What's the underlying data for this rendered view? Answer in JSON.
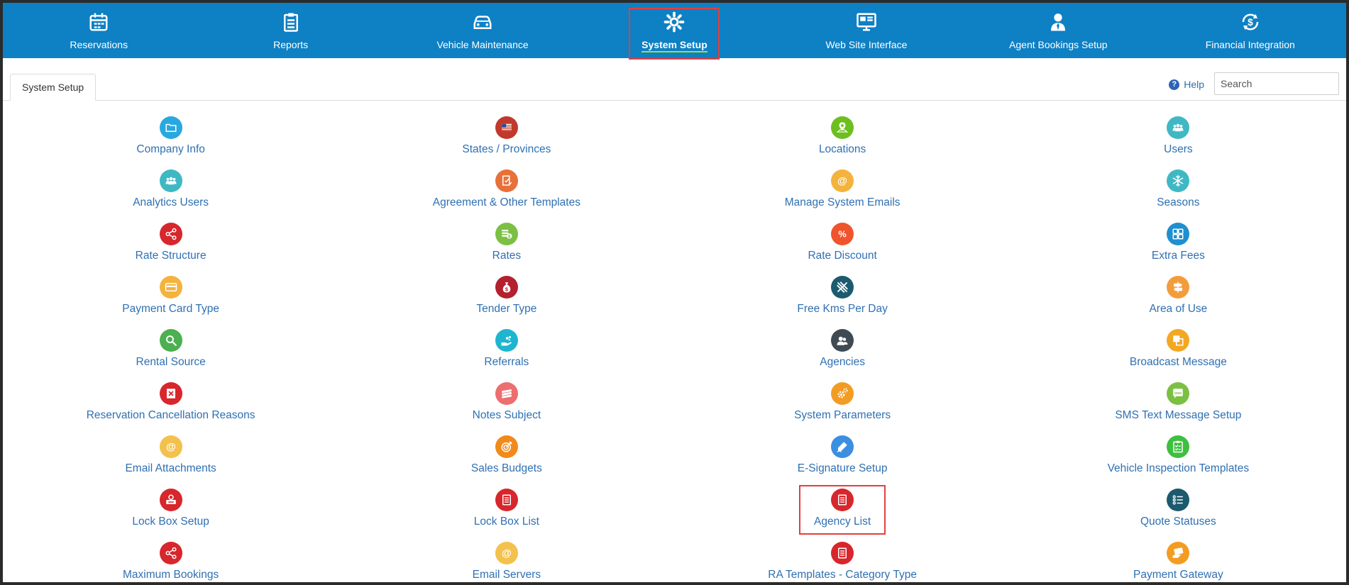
{
  "nav": [
    {
      "label": "Reservations",
      "icon": "calendar-icon",
      "active": false
    },
    {
      "label": "Reports",
      "icon": "clipboard-icon",
      "active": false
    },
    {
      "label": "Vehicle Maintenance",
      "icon": "car-icon",
      "active": false
    },
    {
      "label": "System Setup",
      "icon": "gear-icon",
      "active": true
    },
    {
      "label": "Web Site Interface",
      "icon": "monitor-icon",
      "active": false
    },
    {
      "label": "Agent Bookings Setup",
      "icon": "agent-icon",
      "active": false
    },
    {
      "label": "Financial Integration",
      "icon": "dollar-sync-icon",
      "active": false
    }
  ],
  "tab": {
    "label": "System Setup"
  },
  "help": {
    "label": "Help"
  },
  "search": {
    "placeholder": "Search",
    "value": ""
  },
  "items": [
    {
      "label": "Company Info",
      "icon": "folder-icon",
      "color": "#29a8e0"
    },
    {
      "label": "States / Provinces",
      "icon": "flag-icon",
      "color": "#c0392b"
    },
    {
      "label": "Locations",
      "icon": "map-pin-icon",
      "color": "#6cbf1e"
    },
    {
      "label": "Users",
      "icon": "users-icon",
      "color": "#3fb8c4"
    },
    {
      "label": "Analytics Users",
      "icon": "users-icon",
      "color": "#3fb8c4"
    },
    {
      "label": "Agreement & Other Templates",
      "icon": "document-edit-icon",
      "color": "#e8703a"
    },
    {
      "label": "Manage System Emails",
      "icon": "at-icon",
      "color": "#f3b33d"
    },
    {
      "label": "Seasons",
      "icon": "snowflake-icon",
      "color": "#3fb8c4"
    },
    {
      "label": "Rate Structure",
      "icon": "share-icon",
      "color": "#d7262c"
    },
    {
      "label": "Rates",
      "icon": "money-icon",
      "color": "#7bc043"
    },
    {
      "label": "Rate Discount",
      "icon": "percent-icon",
      "color": "#f0542d"
    },
    {
      "label": "Extra Fees",
      "icon": "grid-icon",
      "color": "#1f8fd0"
    },
    {
      "label": "Payment Card Type",
      "icon": "credit-card-icon",
      "color": "#f3b33d"
    },
    {
      "label": "Tender Type",
      "icon": "money-bag-icon",
      "color": "#b3202e"
    },
    {
      "label": "Free Kms Per Day",
      "icon": "road-icon",
      "color": "#1c5a6e"
    },
    {
      "label": "Area of Use",
      "icon": "signpost-icon",
      "color": "#f39c3d"
    },
    {
      "label": "Rental Source",
      "icon": "magnifier-icon",
      "color": "#4caf50"
    },
    {
      "label": "Referrals",
      "icon": "hand-icon",
      "color": "#1fb5d0"
    },
    {
      "label": "Agencies",
      "icon": "agencies-icon",
      "color": "#3f4a52"
    },
    {
      "label": "Broadcast Message",
      "icon": "copy-icon",
      "color": "#f3a823"
    },
    {
      "label": "Reservation Cancellation Reasons",
      "icon": "cancel-icon",
      "color": "#d7262c"
    },
    {
      "label": "Notes Subject",
      "icon": "notes-icon",
      "color": "#ec6e6e"
    },
    {
      "label": "System Parameters",
      "icon": "gears-icon",
      "color": "#f39c23"
    },
    {
      "label": "SMS Text Message Setup",
      "icon": "sms-icon",
      "color": "#7bc043"
    },
    {
      "label": "Email Attachments",
      "icon": "at-icon",
      "color": "#f3c14d"
    },
    {
      "label": "Sales Budgets",
      "icon": "target-icon",
      "color": "#f08a1c"
    },
    {
      "label": "E-Signature Setup",
      "icon": "pen-icon",
      "color": "#3b8fe0"
    },
    {
      "label": "Vehicle Inspection Templates",
      "icon": "checklist-icon",
      "color": "#3fbf3f"
    },
    {
      "label": "Lock Box Setup",
      "icon": "lock-box-icon",
      "color": "#d7262c"
    },
    {
      "label": "Lock Box List",
      "icon": "list-doc-icon",
      "color": "#d7262c"
    },
    {
      "label": "Agency List",
      "icon": "list-doc-icon",
      "color": "#d7262c",
      "highlight": true
    },
    {
      "label": "Quote Statuses",
      "icon": "status-list-icon",
      "color": "#1c5a6e"
    },
    {
      "label": "Maximum Bookings",
      "icon": "share-icon",
      "color": "#d7262c"
    },
    {
      "label": "Email Servers",
      "icon": "at-icon",
      "color": "#f3c14d"
    },
    {
      "label": "RA Templates - Category Type",
      "icon": "list-doc-icon",
      "color": "#d7262c"
    },
    {
      "label": "Payment Gateway",
      "icon": "payment-icon",
      "color": "#f39c23"
    }
  ]
}
